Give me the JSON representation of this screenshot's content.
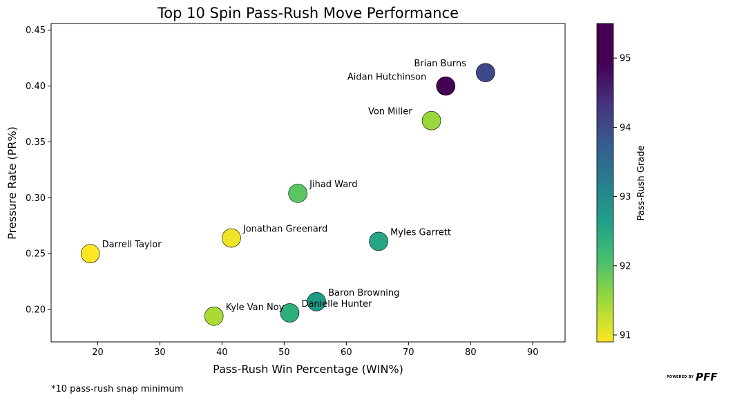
{
  "chart_data": {
    "type": "scatter",
    "title": "Top 10 Spin Pass-Rush Move Performance",
    "xlabel": "Pass-Rush Win Percentage (WIN%)",
    "ylabel": "Pressure Rate (PR%)",
    "xlim": [
      12.5,
      95.2
    ],
    "ylim": [
      0.171,
      0.456
    ],
    "xticks": [
      20,
      30,
      40,
      50,
      60,
      70,
      80,
      90
    ],
    "yticks": [
      0.2,
      0.25,
      0.3,
      0.35,
      0.4,
      0.45
    ],
    "ytick_labels": [
      "0.20",
      "0.25",
      "0.30",
      "0.35",
      "0.40",
      "0.45"
    ],
    "colorbar": {
      "label": "Pass-Rush Grade",
      "range": [
        90.9,
        95.5
      ],
      "ticks": [
        91,
        92,
        93,
        94,
        95
      ],
      "colormap": "viridis_r"
    },
    "points": [
      {
        "name": "Brian Burns",
        "x": 82.4,
        "y": 0.412,
        "grade": 94.5,
        "label_side": "left"
      },
      {
        "name": "Aidan Hutchinson",
        "x": 76.0,
        "y": 0.4,
        "grade": 95.5,
        "label_side": "left"
      },
      {
        "name": "Von Miller",
        "x": 73.7,
        "y": 0.369,
        "grade": 91.6,
        "label_side": "left"
      },
      {
        "name": "Jihad Ward",
        "x": 52.2,
        "y": 0.304,
        "grade": 92.1,
        "label_side": "right"
      },
      {
        "name": "Jonathan Greenard",
        "x": 41.5,
        "y": 0.264,
        "grade": 91.0,
        "label_side": "right"
      },
      {
        "name": "Myles Garrett",
        "x": 65.2,
        "y": 0.261,
        "grade": 92.8,
        "label_side": "right"
      },
      {
        "name": "Darrell Taylor",
        "x": 18.8,
        "y": 0.25,
        "grade": 90.9,
        "label_side": "right"
      },
      {
        "name": "Baron Browning",
        "x": 55.2,
        "y": 0.207,
        "grade": 93.0,
        "label_side": "right"
      },
      {
        "name": "Danielle Hunter",
        "x": 50.9,
        "y": 0.197,
        "grade": 92.6,
        "label_side": "right"
      },
      {
        "name": "Kyle Van Noy",
        "x": 38.7,
        "y": 0.194,
        "grade": 91.5,
        "label_side": "right"
      }
    ]
  },
  "footnote": "*10 pass-rush snap minimum",
  "brand": {
    "small_text": "POWERED BY",
    "logo_text": "PFF"
  }
}
